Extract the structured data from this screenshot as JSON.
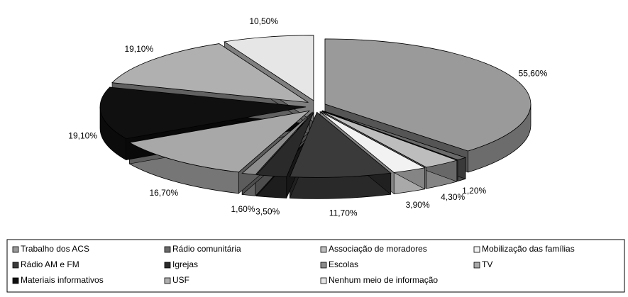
{
  "chart_data": {
    "type": "pie",
    "categories": [
      "Trabalho dos ACS",
      "Rádio comunitária",
      "Associação de moradores",
      "Mobilização das famílias",
      "Rádio AM e FM",
      "Igrejas",
      "Escolas",
      "TV",
      "Materiais informativos",
      "USF",
      "Nenhum meio de informação"
    ],
    "values": [
      55.6,
      1.2,
      4.3,
      3.9,
      11.7,
      3.5,
      1.6,
      16.7,
      19.1,
      19.1,
      10.5
    ],
    "value_labels": [
      "55,60%",
      "1,20%",
      "4,30%",
      "3,90%",
      "11,70%",
      "3,50%",
      "1,60%",
      "16,70%",
      "19,10%",
      "19,10%",
      "10,50%"
    ],
    "colors": [
      "#9a9a9a",
      "#6a6a6a",
      "#bdbdbd",
      "#f2f2f2",
      "#3a3a3a",
      "#2a2a2a",
      "#8c8c8c",
      "#a8a8a8",
      "#101010",
      "#b0b0b0",
      "#e6e6e6"
    ]
  }
}
